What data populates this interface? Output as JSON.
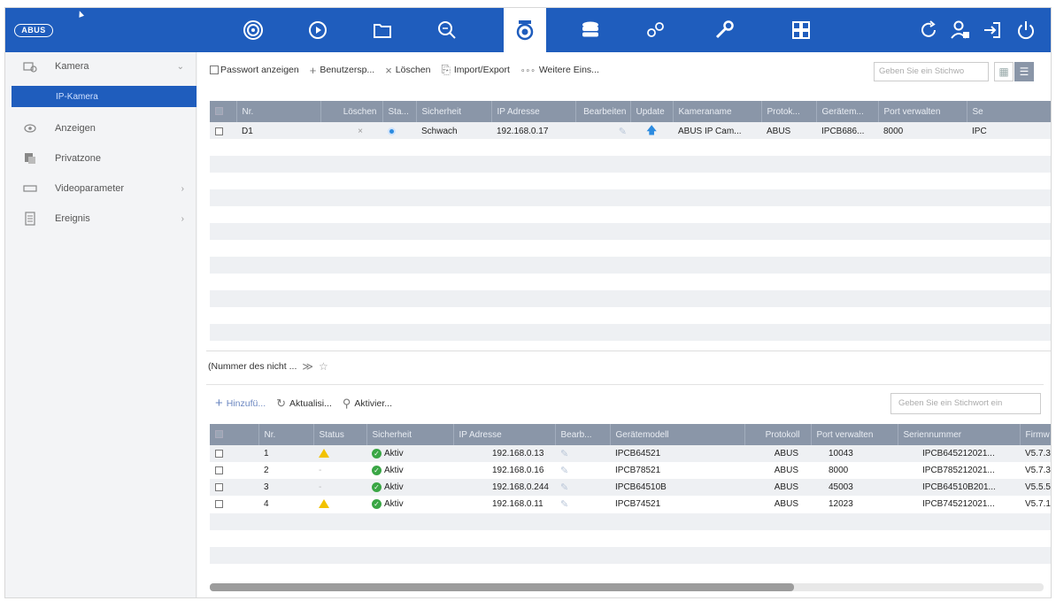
{
  "brand": "ABUS",
  "colors": {
    "topbar": "#1f5dbd",
    "header": "#8a96a8",
    "active": "#1f5dbd"
  },
  "topnav": [
    "live-view-icon",
    "playback-icon",
    "files-icon",
    "search-icon",
    "camera-icon",
    "storage-icon",
    "settings-icon",
    "maintenance-icon",
    "layout-icon"
  ],
  "topright": [
    "refresh-icon",
    "user-icon",
    "logout-icon",
    "power-icon"
  ],
  "sidebar": {
    "items": [
      {
        "label": "Kamera",
        "icon": "camera-icon"
      },
      {
        "label": "Anzeigen",
        "icon": "eye-icon"
      },
      {
        "label": "Privatzone",
        "icon": "privacy-icon"
      },
      {
        "label": "Videoparameter",
        "icon": "video-icon"
      },
      {
        "label": "Ereignis",
        "icon": "event-icon"
      }
    ],
    "subitem": "IP-Kamera"
  },
  "toolbar": {
    "show_password": "Passwort anzeigen",
    "custom": "Benutzersp...",
    "delete": "Löschen",
    "import_export": "Import/Export",
    "more": "Weitere Eins...",
    "search_placeholder": "Geben Sie ein Stichwo"
  },
  "table1": {
    "headers": [
      "Nr.",
      "Löschen",
      "Sta...",
      "Sicherheit",
      "IP Adresse",
      "Bearbeiten",
      "Update",
      "Kameraname",
      "Protok...",
      "Gerätem...",
      "Port verwalten",
      "Se"
    ],
    "rows": [
      {
        "nr": "D1",
        "delete": "×",
        "security": "Schwach",
        "ip": "192.168.0.17",
        "name": "ABUS IP Cam...",
        "protocol": "ABUS",
        "model": "IPCB686...",
        "port": "8000",
        "serial": "IPC"
      }
    ]
  },
  "filter": {
    "label": "(Nummer des nicht ..."
  },
  "toolbar2": {
    "add": "Hinzufü...",
    "refresh": "Aktualisi...",
    "activate": "Aktivier...",
    "search_placeholder": "Geben Sie ein Stichwort ein"
  },
  "table2": {
    "headers": [
      "Nr.",
      "Status",
      "Sicherheit",
      "IP Adresse",
      "Bearb...",
      "Gerätemodell",
      "Protokoll",
      "Port verwalten",
      "Seriennummer",
      "Firmw"
    ],
    "rows": [
      {
        "nr": "1",
        "status": "warning",
        "security": "Aktiv",
        "ip": "192.168.0.13",
        "model": "IPCB64521",
        "protocol": "ABUS",
        "port": "10043",
        "serial": "IPCB645212021...",
        "fw": "V5.7.3"
      },
      {
        "nr": "2",
        "status": "-",
        "security": "Aktiv",
        "ip": "192.168.0.16",
        "model": "IPCB78521",
        "protocol": "ABUS",
        "port": "8000",
        "serial": "IPCB785212021...",
        "fw": "V5.7.3"
      },
      {
        "nr": "3",
        "status": "-",
        "security": "Aktiv",
        "ip": "192.168.0.244",
        "model": "IPCB64510B",
        "protocol": "ABUS",
        "port": "45003",
        "serial": "IPCB64510B201...",
        "fw": "V5.5.5"
      },
      {
        "nr": "4",
        "status": "warning",
        "security": "Aktiv",
        "ip": "192.168.0.11",
        "model": "IPCB74521",
        "protocol": "ABUS",
        "port": "12023",
        "serial": "IPCB745212021...",
        "fw": "V5.7.1"
      }
    ]
  }
}
